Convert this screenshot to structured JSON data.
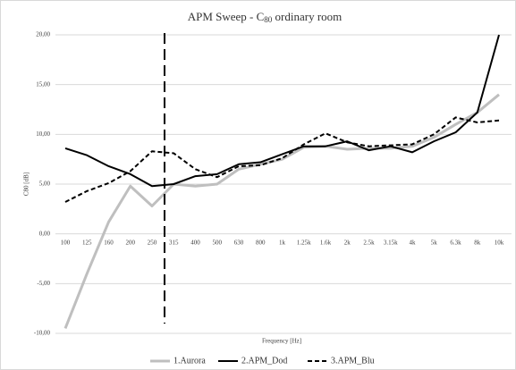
{
  "chart_data": {
    "type": "line",
    "title": [
      "APM Sweep - C",
      "80",
      " ordinary room"
    ],
    "x_label": "Frequency [Hz]",
    "y_label": "C80 [dB]",
    "categories": [
      "100",
      "125",
      "160",
      "200",
      "250",
      "315",
      "400",
      "500",
      "630",
      "800",
      "1k",
      "1.25k",
      "1.6k",
      "2k",
      "2.5k",
      "3.15k",
      "4k",
      "5k",
      "6.3k",
      "8k",
      "10k"
    ],
    "series": [
      {
        "name": "1.Aurora",
        "color": "#bfbfbf",
        "width": 3,
        "dashed": false,
        "values": [
          -9.5,
          -4.0,
          1.2,
          4.8,
          2.8,
          5.0,
          4.8,
          5.0,
          6.5,
          7.0,
          7.5,
          8.7,
          8.8,
          8.5,
          8.6,
          8.6,
          8.8,
          9.7,
          11.0,
          12.2,
          14.0
        ]
      },
      {
        "name": "2.APM_Dod",
        "color": "#000000",
        "width": 2,
        "dashed": false,
        "values": [
          8.6,
          7.9,
          6.8,
          6.0,
          4.8,
          5.0,
          5.8,
          6.0,
          7.0,
          7.2,
          8.0,
          8.8,
          8.8,
          9.3,
          8.4,
          8.8,
          8.2,
          9.3,
          10.2,
          12.2,
          20.0
        ]
      },
      {
        "name": "3.APM_Blu",
        "color": "#000000",
        "width": 2,
        "dashed": true,
        "values": [
          3.2,
          4.3,
          5.1,
          6.3,
          8.3,
          8.1,
          6.5,
          5.7,
          6.8,
          6.9,
          7.6,
          9.0,
          10.1,
          9.2,
          8.8,
          8.9,
          9.0,
          10.0,
          11.7,
          11.2,
          11.4
        ]
      }
    ],
    "ylim": [
      -10,
      20
    ],
    "yticks": [
      {
        "value": -10,
        "label": "-10,00"
      },
      {
        "value": -5,
        "label": "-5,00"
      },
      {
        "value": 0,
        "label": "0,00"
      },
      {
        "value": 5,
        "label": "5,00"
      },
      {
        "value": 10,
        "label": "10,00"
      },
      {
        "value": 15,
        "label": "15,00"
      },
      {
        "value": 20,
        "label": "20,00"
      }
    ],
    "grid": true,
    "legend": "bottom"
  }
}
